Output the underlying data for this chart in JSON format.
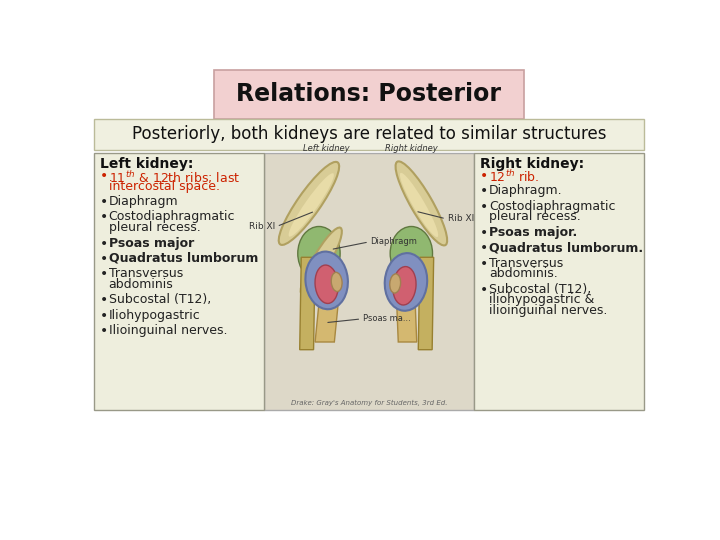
{
  "title": "Relations: Posterior",
  "subtitle": "Posteriorly, both kidneys are related to similar structures",
  "title_bg": "#f2d0d0",
  "subtitle_bg": "#f0f0e0",
  "left_box_bg": "#eeeedd",
  "right_box_bg": "#eeeedd",
  "left_header": "Left kidney:",
  "right_header": "Right kidney:",
  "bg_color": "#ffffff",
  "box_border": "#aaaaaa",
  "title_fontsize": 17,
  "subtitle_fontsize": 12,
  "header_fontsize": 10,
  "item_fontsize": 9,
  "left_bullets": [
    {
      "text": "11$^{th}$ & 12th ribs; last\nintercostal space.",
      "color": "#cc2200",
      "bold": false
    },
    {
      "text": "Diaphragm",
      "color": "#222222",
      "bold": false
    },
    {
      "text": "Costodiaphragmatic\npleural recess.",
      "color": "#222222",
      "bold": false
    },
    {
      "text": "Psoas major",
      "color": "#222222",
      "bold": true
    },
    {
      "text": "Quadratus lumborum",
      "color": "#222222",
      "bold": true
    },
    {
      "text": "Transversus\nabdominis",
      "color": "#222222",
      "bold": false
    },
    {
      "text": "Subcostal (T12),",
      "color": "#222222",
      "bold": false
    },
    {
      "text": "Iliohypogastric",
      "color": "#222222",
      "bold": false
    },
    {
      "text": "Ilioinguinal nerves.",
      "color": "#222222",
      "bold": false
    }
  ],
  "right_bullets": [
    {
      "text": "12$^{th}$ rib.",
      "color": "#cc2200",
      "bold": false
    },
    {
      "text": "Diaphragm.",
      "color": "#222222",
      "bold": false
    },
    {
      "text": "Costodiaphragmatic\npleural recess.",
      "color": "#222222",
      "bold": false
    },
    {
      "text": "Psoas major.",
      "color": "#222222",
      "bold": true
    },
    {
      "text": "Quadratus lumborum.",
      "color": "#222222",
      "bold": true
    },
    {
      "text": "Transversus\nabdominis.",
      "color": "#222222",
      "bold": false
    },
    {
      "text": "Subcostal (T12),\niliohypogastric &\nilioinguinal nerves.",
      "color": "#222222",
      "bold": false
    }
  ]
}
